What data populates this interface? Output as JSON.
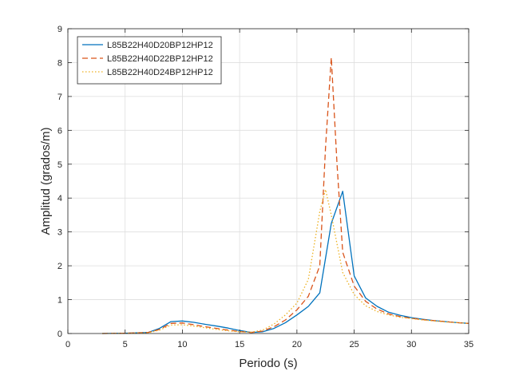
{
  "chart_data": {
    "type": "line",
    "title": "",
    "xlabel": "Periodo (s)",
    "ylabel": "Amplitud (grados/m)",
    "xlim": [
      0,
      35
    ],
    "ylim": [
      0,
      9
    ],
    "xticks": [
      0,
      5,
      10,
      15,
      20,
      25,
      30,
      35
    ],
    "yticks": [
      0,
      1,
      2,
      3,
      4,
      5,
      6,
      7,
      8,
      9
    ],
    "grid": true,
    "legend_position": "top-left",
    "series": [
      {
        "name": "L85B22H40D20BP12HP12",
        "color": "#0072BD",
        "style": "solid",
        "x": [
          3,
          5,
          7,
          8,
          9,
          10,
          11,
          12,
          13,
          14,
          15,
          16,
          17,
          18,
          19,
          20,
          21,
          22,
          23,
          24,
          25,
          26,
          27,
          28,
          29,
          30,
          31,
          32,
          33,
          34,
          35
        ],
        "y": [
          0,
          0.01,
          0.03,
          0.15,
          0.35,
          0.37,
          0.33,
          0.27,
          0.22,
          0.16,
          0.09,
          0.03,
          0.05,
          0.15,
          0.32,
          0.55,
          0.8,
          1.2,
          3.25,
          4.2,
          1.7,
          1.05,
          0.8,
          0.63,
          0.54,
          0.47,
          0.42,
          0.38,
          0.35,
          0.32,
          0.3
        ]
      },
      {
        "name": "L85B22H40D22BP12HP12",
        "color": "#D95319",
        "style": "dashed",
        "x": [
          3,
          5,
          7,
          8,
          9,
          10,
          11,
          12,
          13,
          14,
          15,
          16,
          17,
          18,
          19,
          20,
          21,
          22,
          22.5,
          23,
          23.5,
          24,
          25,
          26,
          27,
          28,
          29,
          30,
          31,
          32,
          33,
          34,
          35
        ],
        "y": [
          0,
          0.01,
          0.03,
          0.12,
          0.3,
          0.31,
          0.26,
          0.2,
          0.15,
          0.1,
          0.06,
          0.03,
          0.07,
          0.2,
          0.4,
          0.7,
          1.1,
          2.0,
          5.5,
          8.15,
          5.0,
          2.4,
          1.4,
          0.95,
          0.72,
          0.58,
          0.5,
          0.45,
          0.41,
          0.38,
          0.35,
          0.32,
          0.3
        ]
      },
      {
        "name": "L85B22H40D24BP12HP12",
        "color": "#EDB120",
        "style": "dotted",
        "x": [
          3,
          5,
          7,
          8,
          9,
          10,
          11,
          12,
          13,
          14,
          15,
          16,
          17,
          18,
          19,
          20,
          21,
          22,
          22.5,
          23,
          24,
          25,
          26,
          27,
          28,
          29,
          30,
          31,
          32,
          33,
          34,
          35
        ],
        "y": [
          0,
          0.01,
          0.02,
          0.1,
          0.25,
          0.26,
          0.22,
          0.17,
          0.12,
          0.08,
          0.05,
          0.04,
          0.1,
          0.28,
          0.55,
          0.9,
          1.6,
          3.6,
          4.25,
          3.5,
          1.8,
          1.15,
          0.82,
          0.65,
          0.55,
          0.48,
          0.44,
          0.4,
          0.37,
          0.34,
          0.32,
          0.3
        ]
      }
    ]
  }
}
